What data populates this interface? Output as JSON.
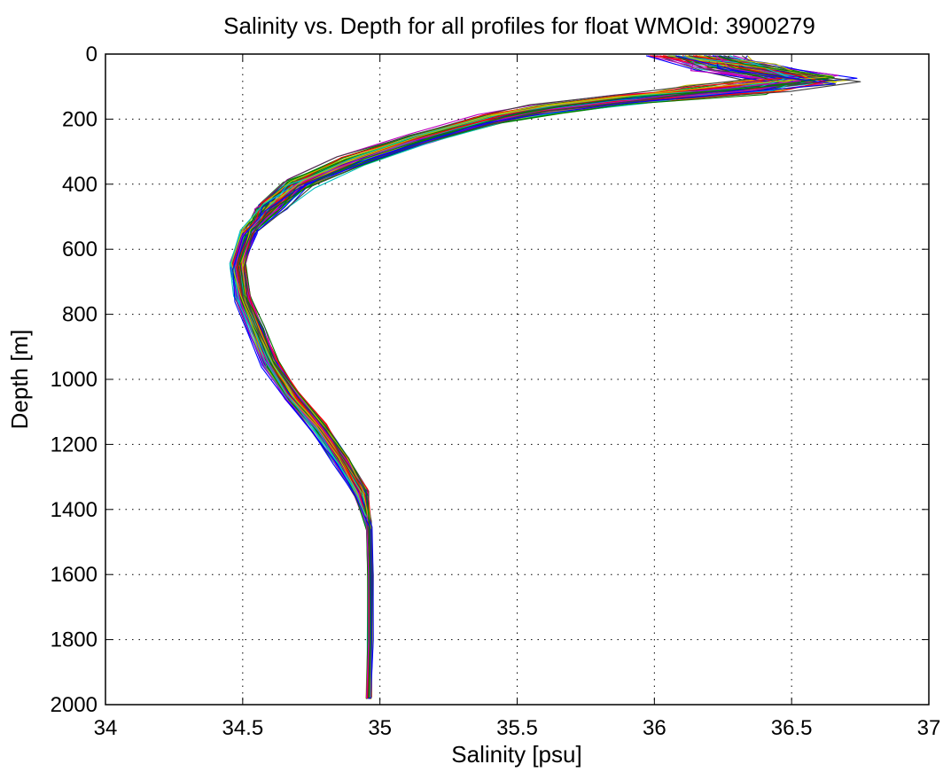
{
  "chart_data": {
    "type": "line",
    "title": "Salinity vs. Depth for all profiles for float WMOId: 3900279",
    "xlabel": "Salinity [psu]",
    "ylabel": "Depth [m]",
    "xlim": [
      34,
      37
    ],
    "ylim": [
      0,
      2000
    ],
    "y_reversed": true,
    "grid": true,
    "grid_style": "dotted",
    "xticks": [
      "34",
      "34.5",
      "35",
      "35.5",
      "36",
      "36.5",
      "37"
    ],
    "yticks": [
      "0",
      "200",
      "400",
      "600",
      "800",
      "1000",
      "1200",
      "1400",
      "1600",
      "1800",
      "2000"
    ],
    "colors": [
      "#0000ff",
      "#008000",
      "#ff0000",
      "#00bfbf",
      "#bf00bf",
      "#bfbf00",
      "#404040"
    ],
    "profile_count": 72,
    "representative_profile": {
      "salinity": [
        36.15,
        36.3,
        36.55,
        36.3,
        35.9,
        35.6,
        35.4,
        35.15,
        34.9,
        34.7,
        34.6,
        34.52,
        34.48,
        34.5,
        34.55,
        34.6,
        34.68,
        34.78,
        34.86,
        34.93,
        34.96,
        34.965,
        34.965,
        34.96
      ],
      "depth": [
        5,
        40,
        80,
        110,
        140,
        170,
        200,
        260,
        330,
        400,
        470,
        550,
        650,
        750,
        850,
        950,
        1050,
        1150,
        1250,
        1350,
        1450,
        1600,
        1800,
        1980
      ]
    }
  }
}
